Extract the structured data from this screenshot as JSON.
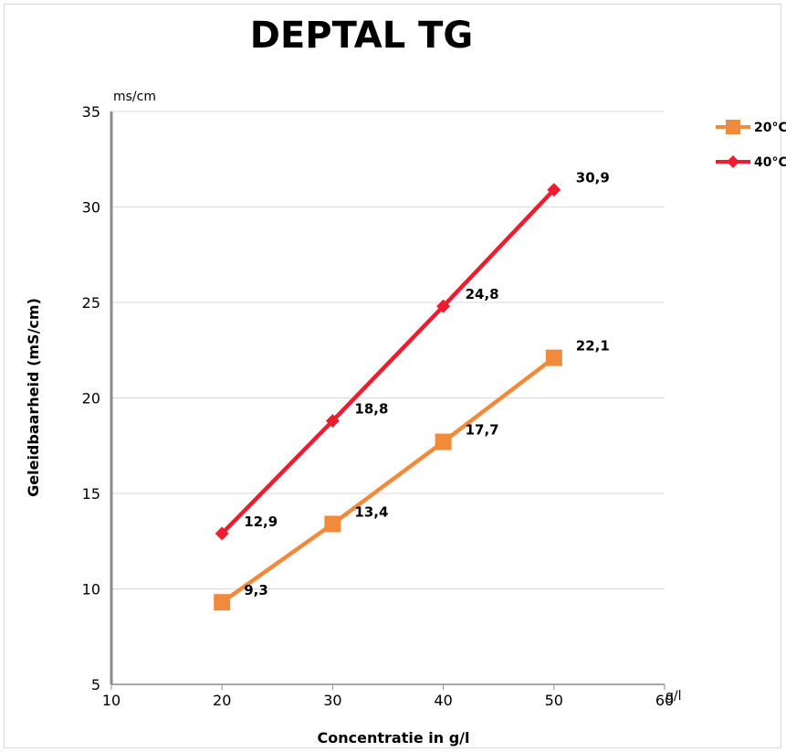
{
  "chart_data": {
    "type": "line",
    "title": "DEPTAL TG",
    "xlabel": "Concentratie in g/l",
    "ylabel": "Geleidbaarheid (mS/cm)",
    "x_unit": "g/l",
    "y_unit": "ms/cm",
    "xlim": [
      10,
      60
    ],
    "ylim": [
      5,
      35
    ],
    "x_ticks": [
      "10",
      "20",
      "30",
      "40",
      "50",
      "60"
    ],
    "y_ticks": [
      "5",
      "10",
      "15",
      "20",
      "25",
      "30",
      "35"
    ],
    "grid": "horizontal",
    "legend_position": "right",
    "series": [
      {
        "name": "20°C",
        "color": "#f28a3c",
        "marker": "square",
        "x": [
          20,
          30,
          40,
          50
        ],
        "y": [
          9.3,
          13.4,
          17.7,
          22.1
        ],
        "labels": [
          "9,3",
          "13,4",
          "17,7",
          "22,1"
        ]
      },
      {
        "name": "40°C",
        "color": "#ee1c2e",
        "marker": "diamond",
        "x": [
          20,
          30,
          40,
          50
        ],
        "y": [
          12.9,
          18.8,
          24.8,
          30.9
        ],
        "labels": [
          "12,9",
          "18,8",
          "24,8",
          "30,9"
        ]
      }
    ]
  }
}
